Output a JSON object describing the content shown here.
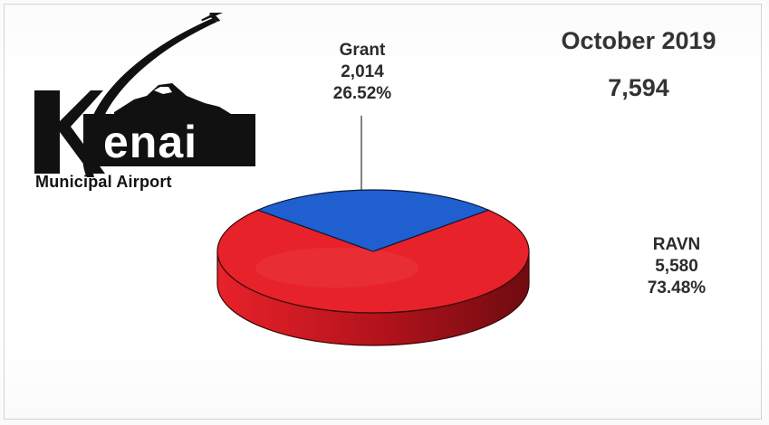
{
  "logo": {
    "wordmark": "enai",
    "initial": "K",
    "subtitle": "Municipal Airport"
  },
  "title": {
    "month": "October 2019",
    "total": "7,594"
  },
  "chart_data": {
    "type": "pie",
    "style": "3d",
    "title": "October 2019",
    "total": 7594,
    "slices": [
      {
        "label": "Grant",
        "value": 2014,
        "value_text": "2,014",
        "percent": 26.52,
        "percent_text": "26.52%",
        "color": "#1f5fd0"
      },
      {
        "label": "RAVN",
        "value": 5580,
        "value_text": "5,580",
        "percent": 73.48,
        "percent_text": "73.48%",
        "color": "#e8222a"
      }
    ]
  },
  "colors": {
    "grant": "#1f5fd0",
    "ravn": "#e8222a",
    "ravn_side": "#b0121b",
    "ravn_side_dark": "#6e0b10",
    "text": "#2b2b2b"
  }
}
